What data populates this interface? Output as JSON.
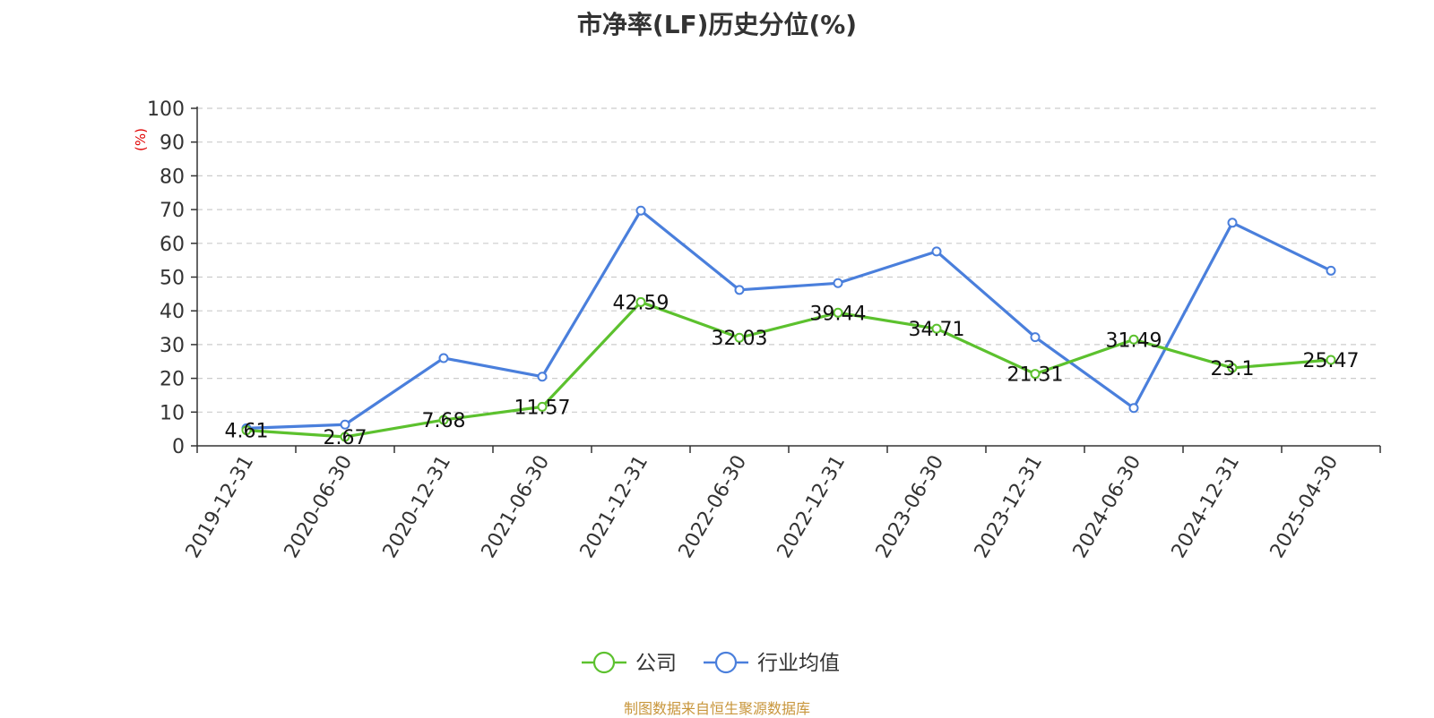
{
  "chart_data": {
    "type": "line",
    "title": "市净率(LF)历史分位(%)",
    "ylabel": "(%)",
    "xlabel": "",
    "ylim": [
      0,
      100
    ],
    "yticks": [
      0,
      10,
      20,
      30,
      40,
      50,
      60,
      70,
      80,
      90,
      100
    ],
    "grid": true,
    "legend_placement": "bottom-center",
    "categories": [
      "2019-12-31",
      "2020-06-30",
      "2020-12-31",
      "2021-06-30",
      "2021-12-31",
      "2022-06-30",
      "2022-12-31",
      "2023-06-30",
      "2023-12-31",
      "2024-06-30",
      "2024-12-31",
      "2025-04-30"
    ],
    "series": [
      {
        "name": "公司",
        "color": "#5cc12e",
        "show_labels": true,
        "values": [
          4.61,
          2.67,
          7.68,
          11.57,
          42.59,
          32.03,
          39.44,
          34.71,
          21.31,
          31.49,
          23.1,
          25.47
        ]
      },
      {
        "name": "行业均值",
        "color": "#4a7fdc",
        "show_labels": false,
        "values": [
          5.2,
          6.3,
          26.0,
          20.5,
          69.7,
          46.2,
          48.2,
          57.6,
          32.2,
          11.2,
          66.1,
          51.9
        ]
      }
    ],
    "source": "制图数据来自恒生聚源数据库"
  }
}
